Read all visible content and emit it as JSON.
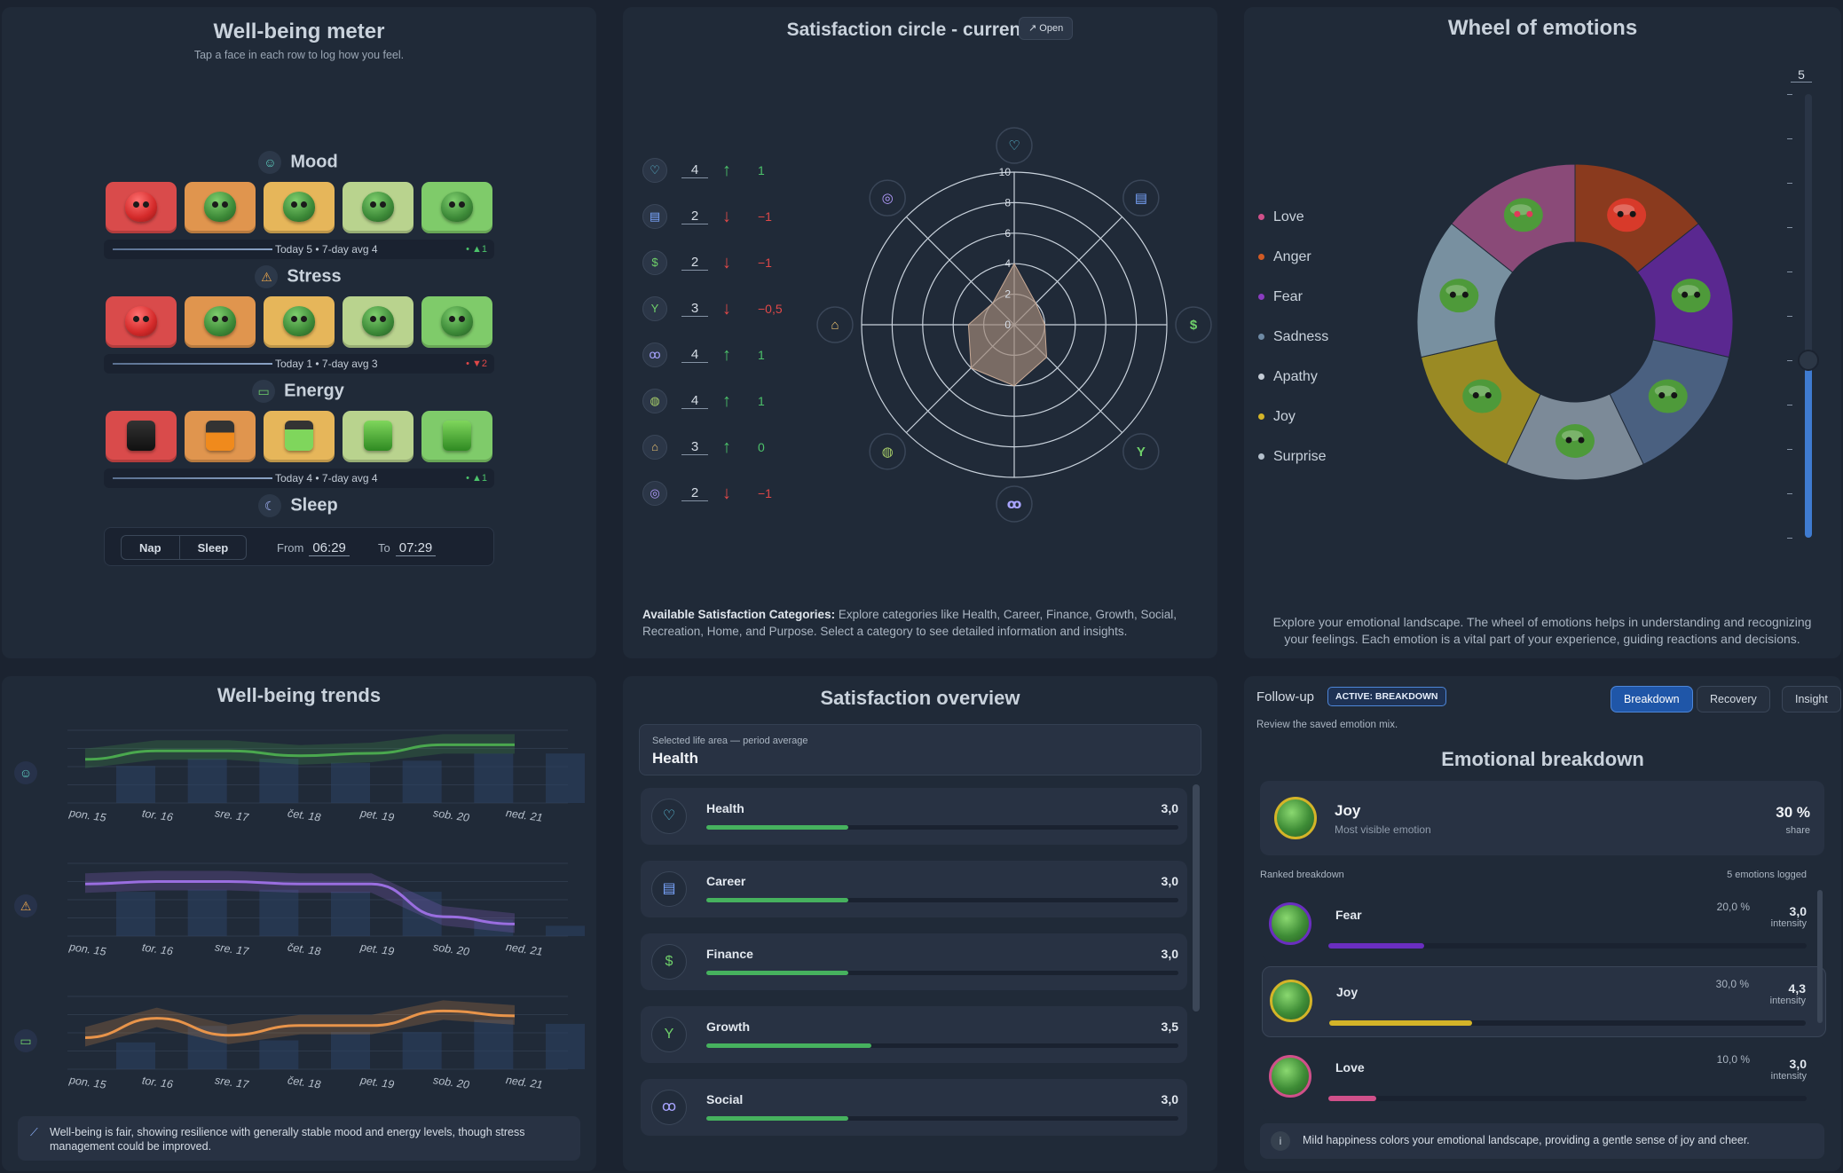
{
  "meter": {
    "title": "Well-being meter",
    "subtitle": "Tap a face in each row to log how you feel.",
    "mood": {
      "label": "Mood",
      "today": "Today 5 • 7-day avg 4",
      "delta": "• ▲1"
    },
    "stress": {
      "label": "Stress",
      "today": "Today 1 • 7-day avg 3",
      "delta": "• ▼2"
    },
    "energy": {
      "label": "Energy",
      "today": "Today 4 • 7-day avg 4",
      "delta": "• ▲1"
    },
    "sleep": {
      "label": "Sleep",
      "nap": "Nap",
      "sleep": "Sleep",
      "from_label": "From",
      "from": "06:29",
      "to_label": "To",
      "to": "07:29"
    }
  },
  "circle": {
    "title": "Satisfaction circle - current",
    "open": "Open",
    "rows": [
      {
        "icon": "heart-icon",
        "glyph": "♡",
        "value": "4",
        "dir": "up",
        "delta": "1"
      },
      {
        "icon": "briefcase-icon",
        "glyph": "▤",
        "value": "2",
        "dir": "down",
        "delta": "−1"
      },
      {
        "icon": "dollar-icon",
        "glyph": "$",
        "value": "2",
        "dir": "down",
        "delta": "−1"
      },
      {
        "icon": "sprout-icon",
        "glyph": "Y",
        "value": "3",
        "dir": "down",
        "delta": "−0,5"
      },
      {
        "icon": "people-icon",
        "glyph": "ꝏ",
        "value": "4",
        "dir": "up",
        "delta": "1"
      },
      {
        "icon": "gamepad-icon",
        "glyph": "◍",
        "value": "4",
        "dir": "up",
        "delta": "1"
      },
      {
        "icon": "home-icon",
        "glyph": "⌂",
        "value": "3",
        "dir": "up",
        "delta": "0"
      },
      {
        "icon": "compass-icon",
        "glyph": "◎",
        "value": "2",
        "dir": "down",
        "delta": "−1"
      }
    ],
    "ring_labels": [
      "0",
      "2",
      "4",
      "6",
      "8",
      "10"
    ],
    "desc_bold": "Available Satisfaction Categories:",
    "desc": " Explore categories like Health, Career, Finance, Growth, Social, Recreation, Home, and Purpose. Select a category to see detailed information and insights."
  },
  "wheel": {
    "title": "Wheel of emotions",
    "slider_value": "5",
    "slider_level": 0.4,
    "legend": [
      {
        "name": "Love",
        "color": "#d0508a"
      },
      {
        "name": "Anger",
        "color": "#d05a24"
      },
      {
        "name": "Fear",
        "color": "#8a3cc0"
      },
      {
        "name": "Sadness",
        "color": "#6e8aa4"
      },
      {
        "name": "Apathy",
        "color": "#c4ccd6"
      },
      {
        "name": "Joy",
        "color": "#d4b428"
      },
      {
        "name": "Surprise",
        "color": "#b4c0cc"
      }
    ],
    "desc": "Explore your emotional landscape. The wheel of emotions helps in understanding and recognizing your feelings. Each emotion is a vital part of your experience, guiding reactions and decisions."
  },
  "trends": {
    "title": "Well-being trends",
    "days": [
      "pon. 15",
      "tor. 16",
      "sre. 17",
      "čet. 18",
      "pet. 19",
      "sob. 20",
      "ned. 21"
    ],
    "note": "Well-being is fair, showing resilience with generally stable mood and energy levels, though stress management could be improved."
  },
  "chart_data": [
    {
      "type": "line",
      "name_hidden": true,
      "x": [
        "pon. 15",
        "tor. 16",
        "sre. 17",
        "čet. 18",
        "pet. 19",
        "sob. 20",
        "ned. 21"
      ],
      "series": [
        {
          "values": [
            3.6,
            4.3,
            4.3,
            3.9,
            4.1,
            4.8,
            4.8
          ]
        }
      ],
      "color": "#4aa84e",
      "ylim": [
        0,
        6
      ]
    },
    {
      "type": "line",
      "x": [
        "pon. 15",
        "tor. 16",
        "sre. 17",
        "čet. 18",
        "pet. 19",
        "sob. 20",
        "ned. 21"
      ],
      "series": [
        {
          "values": [
            4.3,
            4.5,
            4.5,
            4.3,
            4.3,
            1.6,
            1.0
          ]
        }
      ],
      "color": "#9a6ee0",
      "ylim": [
        0,
        6
      ]
    },
    {
      "type": "line",
      "x": [
        "pon. 15",
        "tor. 16",
        "sre. 17",
        "čet. 18",
        "pet. 19",
        "sob. 20",
        "ned. 21"
      ],
      "series": [
        {
          "values": [
            2.6,
            4.2,
            2.8,
            3.6,
            3.6,
            4.8,
            4.4
          ]
        }
      ],
      "color": "#e8944a",
      "ylim": [
        0,
        6
      ]
    }
  ],
  "overview": {
    "title": "Satisfaction overview",
    "sel_label": "Selected life area — period average",
    "sel_value": "Health",
    "rows": [
      {
        "icon": "heart-icon",
        "glyph": "♡",
        "name": "Health",
        "value": "3,0",
        "frac": 0.3
      },
      {
        "icon": "briefcase-icon",
        "glyph": "▤",
        "name": "Career",
        "value": "3,0",
        "frac": 0.3
      },
      {
        "icon": "dollar-icon",
        "glyph": "$",
        "name": "Finance",
        "value": "3,0",
        "frac": 0.3
      },
      {
        "icon": "sprout-icon",
        "glyph": "Y",
        "name": "Growth",
        "value": "3,5",
        "frac": 0.35
      },
      {
        "icon": "people-icon",
        "glyph": "ꝏ",
        "name": "Social",
        "value": "3,0",
        "frac": 0.3
      }
    ]
  },
  "followup": {
    "label": "Follow-up",
    "badge": "ACTIVE: BREAKDOWN",
    "sub": "Review the saved emotion mix.",
    "tabs": [
      "Breakdown",
      "Recovery",
      "Insight"
    ],
    "title": "Emotional breakdown",
    "top_name": "Joy",
    "top_sub": "Most visible emotion",
    "top_pct": "30 %",
    "top_share": "share",
    "ranked": "Ranked breakdown",
    "logged": "5 emotions logged",
    "rows": [
      {
        "name": "Fear",
        "pct": "20,0 %",
        "intensity": "3,0",
        "unit": "intensity",
        "frac": 0.2,
        "color": "#6a2ec0"
      },
      {
        "name": "Joy",
        "pct": "30,0 %",
        "intensity": "4,3",
        "unit": "intensity",
        "frac": 0.3,
        "color": "#d4b428"
      },
      {
        "name": "Love",
        "pct": "10,0 %",
        "intensity": "3,0",
        "unit": "intensity",
        "frac": 0.1,
        "color": "#d0508a"
      }
    ],
    "footer": "Mild happiness colors your emotional landscape, providing a gentle sense of joy and cheer."
  }
}
